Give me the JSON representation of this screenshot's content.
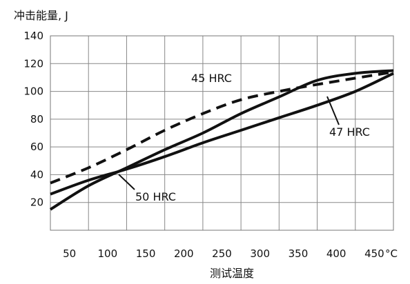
{
  "chart_data": {
    "type": "line",
    "ylabel": "冲击能量, J",
    "xlabel": "测试温度",
    "x_unit": "°C",
    "xlim": [
      25,
      475
    ],
    "ylim": [
      0,
      140
    ],
    "x_ticks": [
      50,
      100,
      150,
      200,
      250,
      300,
      350,
      400,
      450
    ],
    "y_ticks": [
      20,
      40,
      60,
      80,
      100,
      120,
      140
    ],
    "grid": true,
    "legend": "none",
    "series": [
      {
        "name": "45 HRC",
        "style": "dashed",
        "color": "#111111",
        "points": [
          [
            25,
            34
          ],
          [
            75,
            45
          ],
          [
            125,
            58
          ],
          [
            175,
            72
          ],
          [
            225,
            84
          ],
          [
            275,
            94
          ],
          [
            325,
            100
          ],
          [
            375,
            105
          ],
          [
            475,
            114
          ]
        ]
      },
      {
        "name": "47 HRC",
        "style": "solid",
        "color": "#111111",
        "points": [
          [
            25,
            26
          ],
          [
            75,
            36
          ],
          [
            125,
            44
          ],
          [
            175,
            53
          ],
          [
            225,
            63
          ],
          [
            275,
            72
          ],
          [
            325,
            81
          ],
          [
            375,
            90
          ],
          [
            425,
            100
          ],
          [
            475,
            113
          ]
        ]
      },
      {
        "name": "50 HRC",
        "style": "solid",
        "color": "#111111",
        "points": [
          [
            25,
            15
          ],
          [
            75,
            32
          ],
          [
            125,
            45
          ],
          [
            175,
            58
          ],
          [
            225,
            70
          ],
          [
            275,
            84
          ],
          [
            325,
            96
          ],
          [
            375,
            108
          ],
          [
            425,
            113
          ],
          [
            475,
            115
          ]
        ]
      }
    ],
    "annotations": [
      "45 HRC",
      "47 HRC",
      "50 HRC"
    ]
  }
}
